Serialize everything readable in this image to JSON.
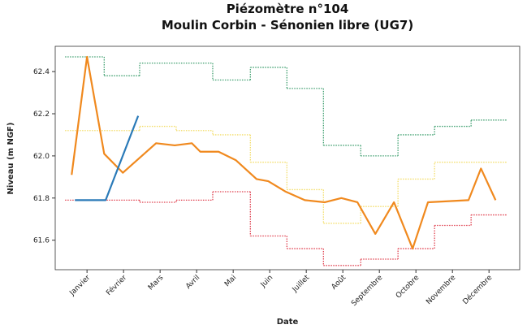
{
  "chart_data": {
    "type": "line",
    "title": "Piézomètre n°104",
    "subtitle": "Moulin Corbin - Sénonien libre (UG7)",
    "x_label": "Date",
    "y_label": "Niveau (m NGF)",
    "xlim": [
      0.13,
      12.84
    ],
    "ylim": [
      61.46,
      62.52
    ],
    "yticks": [
      61.6,
      61.8,
      {
        "value": 62.0,
        "label": "62.0"
      },
      62.2,
      62.4
    ],
    "xticks": [
      {
        "value": 1,
        "label": "Janvier"
      },
      {
        "value": 2,
        "label": "Février"
      },
      {
        "value": 3,
        "label": "Mars"
      },
      {
        "value": 4,
        "label": "Avril"
      },
      {
        "value": 5,
        "label": "Mai"
      },
      {
        "value": 6,
        "label": "Juin"
      },
      {
        "value": 7,
        "label": "Juillet"
      },
      {
        "value": 8,
        "label": "Août"
      },
      {
        "value": 9,
        "label": "Septembre"
      },
      {
        "value": 10,
        "label": "Octobre"
      },
      {
        "value": 11,
        "label": "Novembre"
      },
      {
        "value": 12,
        "label": "Décembre"
      }
    ],
    "steps": [
      {
        "color": "#3f9f6f",
        "bins": [
          0.4,
          1.47,
          2.44,
          3.44,
          4.44,
          5.47,
          6.47,
          7.47,
          8.49,
          9.51,
          10.51,
          11.51,
          12.51
        ],
        "values": [
          62.47,
          62.38,
          62.44,
          62.44,
          62.36,
          62.42,
          62.32,
          62.05,
          62.0,
          62.1,
          62.14,
          62.17
        ]
      },
      {
        "color": "#f3dd6a",
        "bins": [
          0.4,
          1.47,
          2.44,
          3.44,
          4.44,
          5.47,
          6.47,
          7.47,
          8.49,
          9.51,
          10.51,
          11.51,
          12.51
        ],
        "values": [
          62.12,
          62.12,
          62.14,
          62.12,
          62.1,
          61.97,
          61.84,
          61.68,
          61.76,
          61.89,
          61.97,
          61.97
        ]
      },
      {
        "color": "#e0404f",
        "bins": [
          0.4,
          1.47,
          2.44,
          3.44,
          4.44,
          5.47,
          6.47,
          7.47,
          8.49,
          9.51,
          10.51,
          11.51,
          12.51
        ],
        "values": [
          61.79,
          61.79,
          61.78,
          61.79,
          61.83,
          61.62,
          61.56,
          61.48,
          61.51,
          61.56,
          61.67,
          61.72
        ]
      }
    ],
    "series": [
      {
        "color": "#f0891e",
        "x": [
          0.58,
          1.0,
          1.47,
          1.98,
          2.89,
          3.4,
          3.87,
          4.1,
          4.6,
          5.07,
          5.64,
          5.96,
          6.44,
          6.96,
          7.51,
          7.96,
          8.4,
          8.89,
          9.4,
          9.91,
          10.33,
          11.44,
          11.78,
          12.18
        ],
        "values": [
          61.91,
          62.47,
          62.01,
          61.92,
          62.06,
          62.05,
          62.06,
          62.02,
          62.02,
          61.98,
          61.89,
          61.88,
          61.83,
          61.79,
          61.78,
          61.8,
          61.78,
          61.63,
          61.78,
          61.56,
          61.78,
          61.79,
          61.94,
          61.79
        ]
      },
      {
        "color": "#2a7ab8",
        "x": [
          0.67,
          1.51,
          2.4
        ],
        "values": [
          61.79,
          61.79,
          62.19
        ]
      }
    ]
  }
}
